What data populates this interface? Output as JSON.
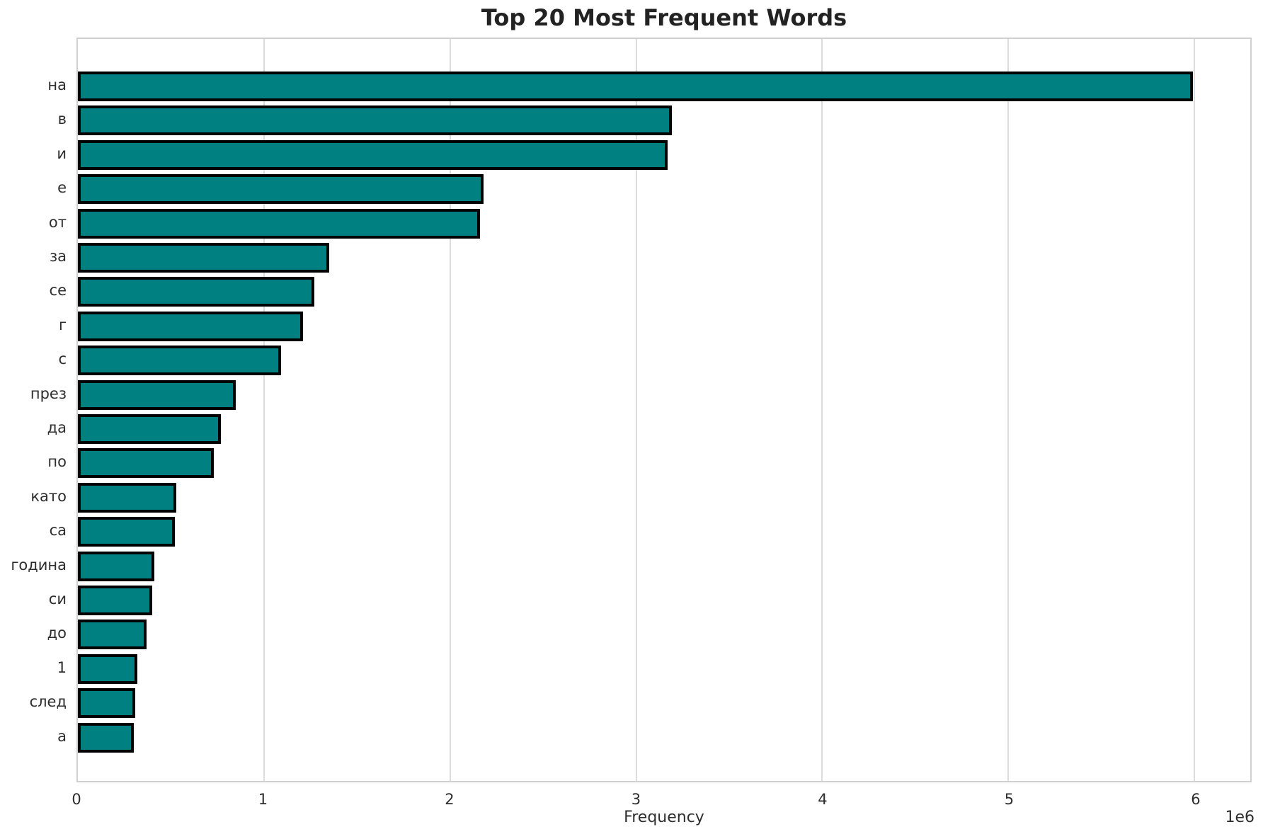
{
  "chart_data": {
    "type": "bar",
    "orientation": "horizontal",
    "title": "Top 20 Most Frequent Words",
    "xlabel": "Frequency",
    "ylabel": "",
    "x_offset_label": "1e6",
    "categories": [
      "на",
      "в",
      "и",
      "е",
      "от",
      "за",
      "се",
      "г",
      "с",
      "през",
      "да",
      "по",
      "като",
      "са",
      "година",
      "си",
      "до",
      "1",
      "след",
      "а"
    ],
    "values": [
      5990000,
      3190000,
      3170000,
      2180000,
      2160000,
      1350000,
      1270000,
      1210000,
      1090000,
      850000,
      770000,
      730000,
      530000,
      520000,
      410000,
      400000,
      370000,
      320000,
      310000,
      300000
    ],
    "xlim": [
      0,
      6300000
    ],
    "x_ticks": [
      0,
      1,
      2,
      3,
      4,
      5,
      6
    ],
    "x_tick_multiplier": 1000000,
    "grid": true,
    "legend": false,
    "bar_color": "#008080",
    "bar_edge_color": "#000000",
    "grid_color": "#dcdcdc",
    "background_color": "#ffffff"
  }
}
